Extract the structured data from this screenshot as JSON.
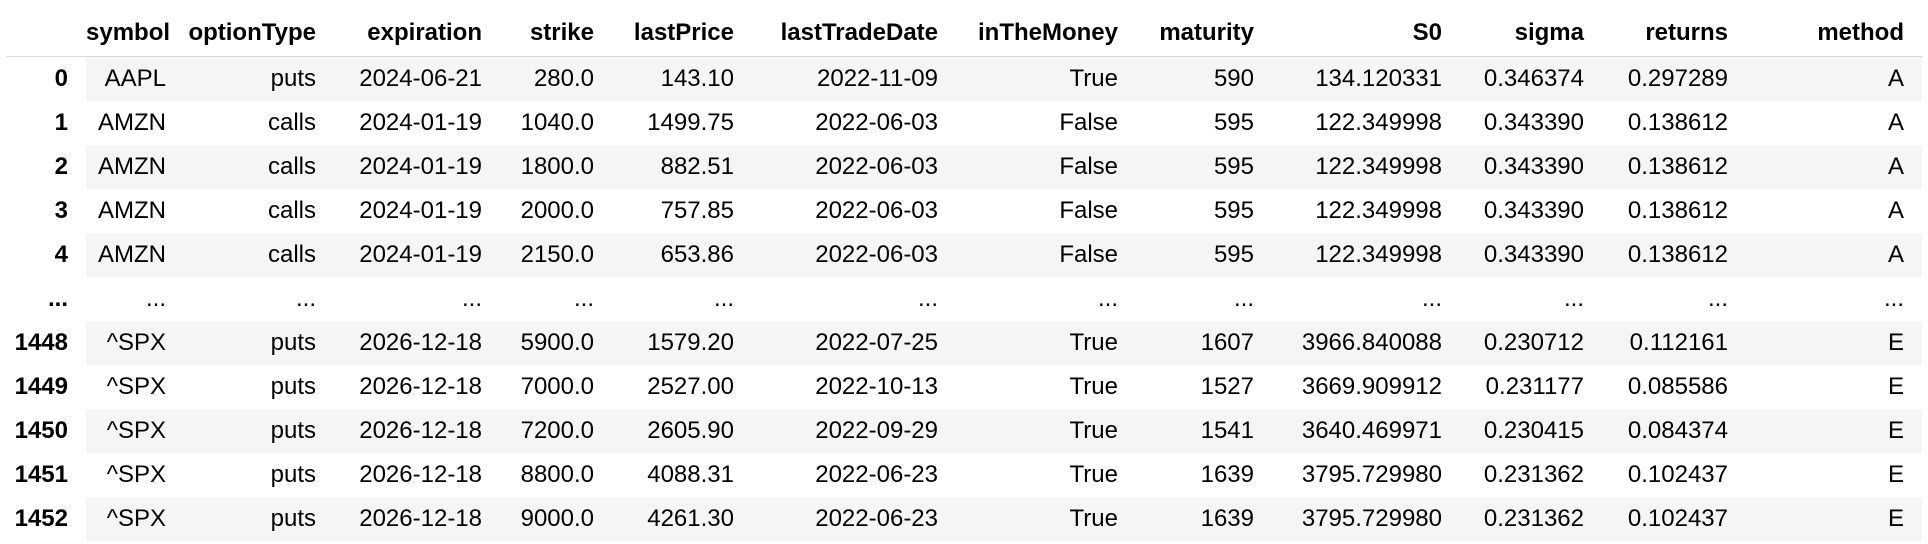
{
  "table": {
    "columns": [
      "",
      "symbol",
      "optionType",
      "expiration",
      "strike",
      "lastPrice",
      "lastTradeDate",
      "inTheMoney",
      "maturity",
      "S0",
      "sigma",
      "returns",
      "method"
    ],
    "rows": [
      [
        "0",
        "AAPL",
        "puts",
        "2024-06-21",
        "280.0",
        "143.10",
        "2022-11-09",
        "True",
        "590",
        "134.120331",
        "0.346374",
        "0.297289",
        "A"
      ],
      [
        "1",
        "AMZN",
        "calls",
        "2024-01-19",
        "1040.0",
        "1499.75",
        "2022-06-03",
        "False",
        "595",
        "122.349998",
        "0.343390",
        "0.138612",
        "A"
      ],
      [
        "2",
        "AMZN",
        "calls",
        "2024-01-19",
        "1800.0",
        "882.51",
        "2022-06-03",
        "False",
        "595",
        "122.349998",
        "0.343390",
        "0.138612",
        "A"
      ],
      [
        "3",
        "AMZN",
        "calls",
        "2024-01-19",
        "2000.0",
        "757.85",
        "2022-06-03",
        "False",
        "595",
        "122.349998",
        "0.343390",
        "0.138612",
        "A"
      ],
      [
        "4",
        "AMZN",
        "calls",
        "2024-01-19",
        "2150.0",
        "653.86",
        "2022-06-03",
        "False",
        "595",
        "122.349998",
        "0.343390",
        "0.138612",
        "A"
      ],
      [
        "...",
        "...",
        "...",
        "...",
        "...",
        "...",
        "...",
        "...",
        "...",
        "...",
        "...",
        "...",
        "..."
      ],
      [
        "1448",
        "^SPX",
        "puts",
        "2026-12-18",
        "5900.0",
        "1579.20",
        "2022-07-25",
        "True",
        "1607",
        "3966.840088",
        "0.230712",
        "0.112161",
        "E"
      ],
      [
        "1449",
        "^SPX",
        "puts",
        "2026-12-18",
        "7000.0",
        "2527.00",
        "2022-10-13",
        "True",
        "1527",
        "3669.909912",
        "0.231177",
        "0.085586",
        "E"
      ],
      [
        "1450",
        "^SPX",
        "puts",
        "2026-12-18",
        "7200.0",
        "2605.90",
        "2022-09-29",
        "True",
        "1541",
        "3640.469971",
        "0.230415",
        "0.084374",
        "E"
      ],
      [
        "1451",
        "^SPX",
        "puts",
        "2026-12-18",
        "8800.0",
        "4088.31",
        "2022-06-23",
        "True",
        "1639",
        "3795.729980",
        "0.231362",
        "0.102437",
        "E"
      ],
      [
        "1452",
        "^SPX",
        "puts",
        "2026-12-18",
        "9000.0",
        "4261.30",
        "2022-06-23",
        "True",
        "1639",
        "3795.729980",
        "0.231362",
        "0.102437",
        "E"
      ]
    ]
  }
}
